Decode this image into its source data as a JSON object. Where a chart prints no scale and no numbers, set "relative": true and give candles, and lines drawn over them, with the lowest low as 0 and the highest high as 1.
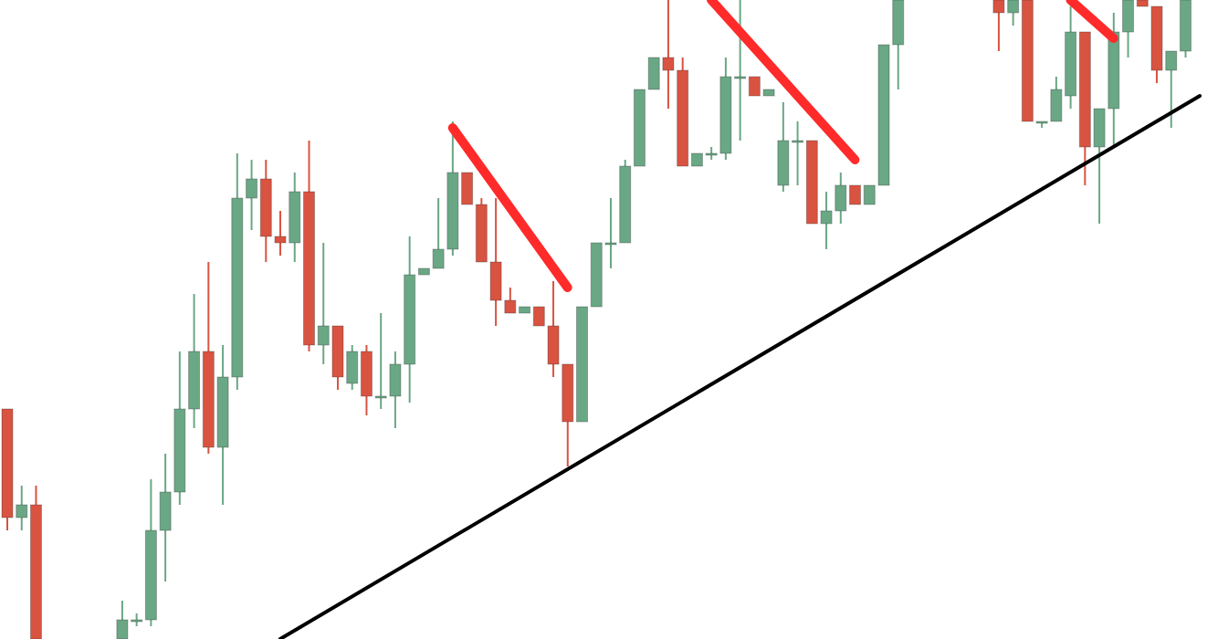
{
  "chart_data": {
    "type": "candlestick",
    "relative": true,
    "tick_labels": false,
    "categories": [
      null,
      null,
      null,
      null,
      null,
      null,
      null,
      null,
      null,
      null,
      null,
      null,
      null,
      null,
      null,
      null,
      null,
      null,
      null,
      null,
      null,
      null,
      null,
      null,
      null,
      null,
      null,
      null,
      null,
      null,
      null,
      null,
      null,
      null,
      null,
      null,
      null,
      null,
      null,
      null,
      null,
      null,
      null,
      null,
      null,
      null,
      null,
      null,
      null,
      null,
      null,
      null,
      null,
      null,
      null,
      null,
      null,
      null,
      null,
      null,
      null,
      null,
      null,
      null,
      null,
      null,
      null,
      null,
      null,
      null,
      null,
      null,
      null,
      null,
      null,
      null,
      null,
      null,
      null,
      null,
      null,
      null,
      null,
      null
    ],
    "ohlc": [
      [
        0.36,
        0.36,
        0.17,
        0.19
      ],
      [
        0.19,
        0.24,
        0.17,
        0.21
      ],
      [
        0.21,
        0.24,
        0,
        0
      ],
      null,
      null,
      null,
      null,
      null,
      [
        0,
        0.06,
        0,
        0.03
      ],
      [
        0.03,
        0.04,
        0.02,
        0.03
      ],
      [
        0.03,
        0.25,
        0.02,
        0.17
      ],
      [
        0.17,
        0.29,
        0.09,
        0.23
      ],
      [
        0.23,
        0.45,
        0.21,
        0.36
      ],
      [
        0.36,
        0.54,
        0.33,
        0.45
      ],
      [
        0.45,
        0.59,
        0.29,
        0.3
      ],
      [
        0.3,
        0.46,
        0.21,
        0.41
      ],
      [
        0.41,
        0.76,
        0.39,
        0.69
      ],
      [
        0.69,
        0.75,
        0.64,
        0.72
      ],
      [
        0.72,
        0.75,
        0.59,
        0.63
      ],
      [
        0.63,
        0.67,
        0.6,
        0.62
      ],
      [
        0.62,
        0.73,
        0.59,
        0.7
      ],
      [
        0.7,
        0.78,
        0.45,
        0.46
      ],
      [
        0.46,
        0.62,
        0.43,
        0.49
      ],
      [
        0.49,
        0.49,
        0.39,
        0.41
      ],
      [
        0.4,
        0.46,
        0.39,
        0.45
      ],
      [
        0.45,
        0.46,
        0.35,
        0.38
      ],
      [
        0.38,
        0.51,
        0.36,
        0.38
      ],
      [
        0.38,
        0.45,
        0.33,
        0.43
      ],
      [
        0.43,
        0.63,
        0.37,
        0.57
      ],
      [
        0.57,
        0.58,
        0.57,
        0.58
      ],
      [
        0.58,
        0.69,
        0.58,
        0.61
      ],
      [
        0.61,
        0.81,
        0.6,
        0.73
      ],
      [
        0.73,
        0.73,
        0.68,
        0.68
      ],
      [
        0.68,
        0.69,
        0.59,
        0.59
      ],
      [
        0.59,
        0.69,
        0.49,
        0.53
      ],
      [
        0.53,
        0.55,
        0.51,
        0.51
      ],
      [
        0.51,
        0.52,
        0.51,
        0.52
      ],
      [
        0.52,
        0.52,
        0.49,
        0.49
      ],
      [
        0.49,
        0.56,
        0.41,
        0.43
      ],
      [
        0.43,
        0.43,
        0.27,
        0.34
      ],
      [
        0.34,
        0.52,
        0.34,
        0.52
      ],
      [
        0.52,
        0.62,
        0.52,
        0.62
      ],
      [
        0.62,
        0.69,
        0.58,
        0.62
      ],
      [
        0.62,
        0.75,
        0.62,
        0.74
      ],
      [
        0.74,
        0.86,
        0.74,
        0.86
      ],
      [
        0.86,
        0.91,
        0.86,
        0.91
      ],
      [
        0.91,
        1,
        0.83,
        0.89
      ],
      [
        0.89,
        0.91,
        0.74,
        0.74
      ],
      [
        0.74,
        0.76,
        0.74,
        0.76
      ],
      [
        0.76,
        0.77,
        0.75,
        0.76
      ],
      [
        0.76,
        0.91,
        0.75,
        0.88
      ],
      [
        0.88,
        1,
        0.78,
        0.88
      ],
      [
        0.88,
        0.88,
        0.85,
        0.85
      ],
      [
        0.85,
        0.86,
        0.85,
        0.86
      ],
      [
        0.71,
        0.84,
        0.7,
        0.78
      ],
      [
        0.78,
        0.81,
        0.71,
        0.78
      ],
      [
        0.78,
        0.78,
        0.65,
        0.65
      ],
      [
        0.65,
        0.7,
        0.61,
        0.67
      ],
      [
        0.67,
        0.73,
        0.65,
        0.71
      ],
      [
        0.71,
        0.71,
        0.68,
        0.68
      ],
      [
        0.68,
        0.71,
        0.68,
        0.71
      ],
      [
        0.71,
        0.93,
        0.71,
        0.93
      ],
      [
        0.93,
        1,
        0.86,
        1
      ],
      null,
      null,
      null,
      null,
      null,
      null,
      [
        1,
        1,
        0.92,
        0.98
      ],
      [
        0.98,
        1,
        0.96,
        1
      ],
      [
        1,
        1,
        0.81,
        0.81
      ],
      [
        0.81,
        0.81,
        0.8,
        0.81
      ],
      [
        0.81,
        0.88,
        0.81,
        0.86
      ],
      [
        0.85,
        0.99,
        0.83,
        0.95
      ],
      [
        0.95,
        0.95,
        0.71,
        0.77
      ],
      [
        0.77,
        0.83,
        0.65,
        0.83
      ],
      [
        0.83,
        0.98,
        0.77,
        0.95
      ],
      [
        0.95,
        1,
        0.91,
        1
      ],
      [
        1,
        1,
        0.99,
        0.99
      ],
      [
        0.99,
        0.99,
        0.87,
        0.89
      ],
      [
        0.89,
        0.92,
        0.8,
        0.92
      ],
      [
        0.92,
        1,
        0.91,
        1
      ],
      null
    ],
    "colors": [
      "#d95341",
      "#6aa785",
      "#d95341",
      null,
      null,
      null,
      null,
      null,
      "#6aa785",
      "#6aa785",
      "#6aa785",
      "#6aa785",
      "#6aa785",
      "#6aa785",
      "#d95341",
      "#6aa785",
      "#6aa785",
      "#6aa785",
      "#d95341",
      "#d95341",
      "#6aa785",
      "#d95341",
      "#6aa785",
      "#d95341",
      "#6aa785",
      "#d95341",
      "#6aa785",
      "#6aa785",
      "#6aa785",
      "#6aa785",
      "#6aa785",
      "#6aa785",
      "#d95341",
      "#d95341",
      "#d95341",
      "#d95341",
      "#6aa785",
      "#d95341",
      "#d95341",
      "#d95341",
      "#6aa785",
      "#6aa785",
      "#6aa785",
      "#6aa785",
      "#6aa785",
      "#6aa785",
      "#d95341",
      "#d95341",
      "#6aa785",
      "#6aa785",
      "#6aa785",
      "#6aa785",
      "#d95341",
      "#6aa785",
      "#6aa785",
      "#6aa785",
      "#d95341",
      "#6aa785",
      "#6aa785",
      "#d95341",
      "#6aa785",
      "#6aa785",
      "#6aa785",
      null,
      null,
      null,
      null,
      null,
      null,
      "#d95341",
      "#6aa785",
      "#d95341",
      "#6aa785",
      "#6aa785",
      "#6aa785",
      "#d95341",
      "#6aa785",
      "#6aa785",
      "#6aa785",
      "#d95341",
      "#d95341",
      "#6aa785",
      "#6aa785",
      null
    ],
    "series": [
      {
        "type": "line",
        "color": "#000000",
        "values": [
          null,
          null,
          null,
          null,
          null,
          null,
          null,
          null,
          null,
          null,
          null,
          null,
          null,
          null,
          null,
          null,
          null,
          null,
          null,
          0,
          null,
          null,
          null,
          null,
          null,
          null,
          null,
          null,
          null,
          null,
          null,
          null,
          null,
          null,
          null,
          null,
          null,
          null,
          null,
          null,
          null,
          null,
          null,
          null,
          null,
          null,
          null,
          null,
          null,
          null,
          null,
          null,
          null,
          null,
          null,
          null,
          null,
          null,
          null,
          null,
          null,
          null,
          null,
          null,
          null,
          null,
          null,
          null,
          null,
          null,
          null,
          null,
          null,
          null,
          null,
          null,
          null,
          null,
          null,
          null,
          null,
          null,
          null,
          0.85
        ]
      },
      {
        "type": "line",
        "color": "#ff2a2a",
        "values": [
          null,
          null,
          null,
          null,
          null,
          null,
          null,
          null,
          null,
          null,
          null,
          null,
          null,
          null,
          null,
          null,
          null,
          null,
          null,
          null,
          null,
          null,
          null,
          null,
          null,
          null,
          null,
          null,
          null,
          null,
          null,
          0.8,
          null,
          null,
          null,
          null,
          null,
          null,
          null,
          0.55,
          null,
          null,
          null,
          null,
          null,
          null,
          null,
          null,
          null,
          null,
          null,
          null,
          null,
          null,
          null,
          null,
          null,
          null,
          null,
          null,
          null,
          null,
          null,
          null,
          null,
          null,
          null,
          null,
          null,
          null,
          null,
          null,
          null,
          null,
          null,
          null,
          null,
          null,
          null,
          null,
          null,
          null,
          null,
          null
        ]
      },
      {
        "type": "line",
        "color": "#ff2a2a",
        "values": [
          null,
          null,
          null,
          null,
          null,
          null,
          null,
          null,
          null,
          null,
          null,
          null,
          null,
          null,
          null,
          null,
          null,
          null,
          null,
          null,
          null,
          null,
          null,
          null,
          null,
          null,
          null,
          null,
          null,
          null,
          null,
          null,
          null,
          null,
          null,
          null,
          null,
          null,
          null,
          null,
          null,
          null,
          null,
          null,
          null,
          null,
          null,
          null,
          null,
          1,
          null,
          null,
          null,
          null,
          null,
          null,
          null,
          null,
          null,
          0.75,
          null,
          null,
          null,
          null,
          null,
          null,
          null,
          null,
          null,
          null,
          null,
          null,
          null,
          null,
          null,
          null,
          null,
          null,
          null,
          null,
          null,
          null,
          null,
          null
        ]
      },
      {
        "type": "line",
        "color": "#ff2a2a",
        "values": [
          null,
          null,
          null,
          null,
          null,
          null,
          null,
          null,
          null,
          null,
          null,
          null,
          null,
          null,
          null,
          null,
          null,
          null,
          null,
          null,
          null,
          null,
          null,
          null,
          null,
          null,
          null,
          null,
          null,
          null,
          null,
          null,
          null,
          null,
          null,
          null,
          null,
          null,
          null,
          null,
          null,
          null,
          null,
          null,
          null,
          null,
          null,
          null,
          null,
          null,
          null,
          null,
          null,
          null,
          null,
          null,
          null,
          null,
          null,
          null,
          null,
          null,
          null,
          null,
          null,
          null,
          null,
          null,
          null,
          null,
          null,
          null,
          null,
          null,
          1,
          null,
          null,
          0.94,
          null,
          null,
          null,
          null,
          null,
          null
        ]
      }
    ]
  }
}
